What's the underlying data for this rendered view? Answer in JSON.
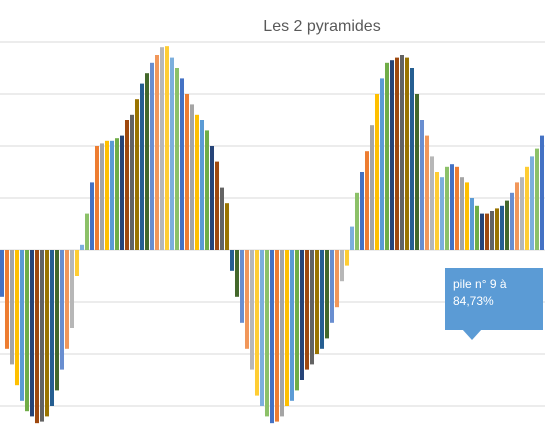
{
  "chart_data": {
    "type": "bar",
    "title": "Les 2 pyramides",
    "values": [
      -0.9,
      -1.9,
      -2.2,
      -2.6,
      -2.9,
      -3.1,
      -3.2,
      -3.33,
      -3.3,
      -3.2,
      -3.0,
      -2.7,
      -2.3,
      -1.9,
      -1.5,
      -0.5,
      0.1,
      0.7,
      1.3,
      2.0,
      2.05,
      2.1,
      2.1,
      2.15,
      2.2,
      2.5,
      2.6,
      2.9,
      3.2,
      3.4,
      3.6,
      3.75,
      3.9,
      3.92,
      3.7,
      3.5,
      3.3,
      3.0,
      2.8,
      2.6,
      2.5,
      2.3,
      2.0,
      1.7,
      1.2,
      0.9,
      -0.4,
      -0.9,
      -1.4,
      -1.9,
      -2.3,
      -2.8,
      -3.0,
      -3.2,
      -3.33,
      -3.3,
      -3.2,
      -3.0,
      -2.9,
      -2.7,
      -2.5,
      -2.3,
      -2.2,
      -2.0,
      -1.9,
      -1.7,
      -1.4,
      -1.1,
      -0.6,
      -0.3,
      0.45,
      1.1,
      1.5,
      1.9,
      2.4,
      3.0,
      3.3,
      3.6,
      3.65,
      3.7,
      3.75,
      3.7,
      3.5,
      3.0,
      2.5,
      2.2,
      1.8,
      1.5,
      1.4,
      1.6,
      1.65,
      1.6,
      1.4,
      1.3,
      1.0,
      0.85,
      0.7,
      0.7,
      0.75,
      0.8,
      0.85,
      0.95,
      1.1,
      1.3,
      1.4,
      1.6,
      1.8,
      1.95,
      2.2
    ],
    "colors": [
      "#4472c4",
      "#ed7d31",
      "#a5a5a5",
      "#ffc000",
      "#5b9bd5",
      "#70ad47",
      "#264478",
      "#9e480e",
      "#636363",
      "#997300",
      "#255e91",
      "#43682b",
      "#698ed0",
      "#f1975a",
      "#b7b7b7",
      "#ffcd33",
      "#7cafdd",
      "#8cc168"
    ],
    "ylim": [
      -3.5,
      4
    ],
    "yticks": [
      -3,
      -2,
      -1,
      0,
      1,
      2,
      3,
      4
    ],
    "grid": true,
    "annotation": "pile n° 9 à 84,73%"
  }
}
